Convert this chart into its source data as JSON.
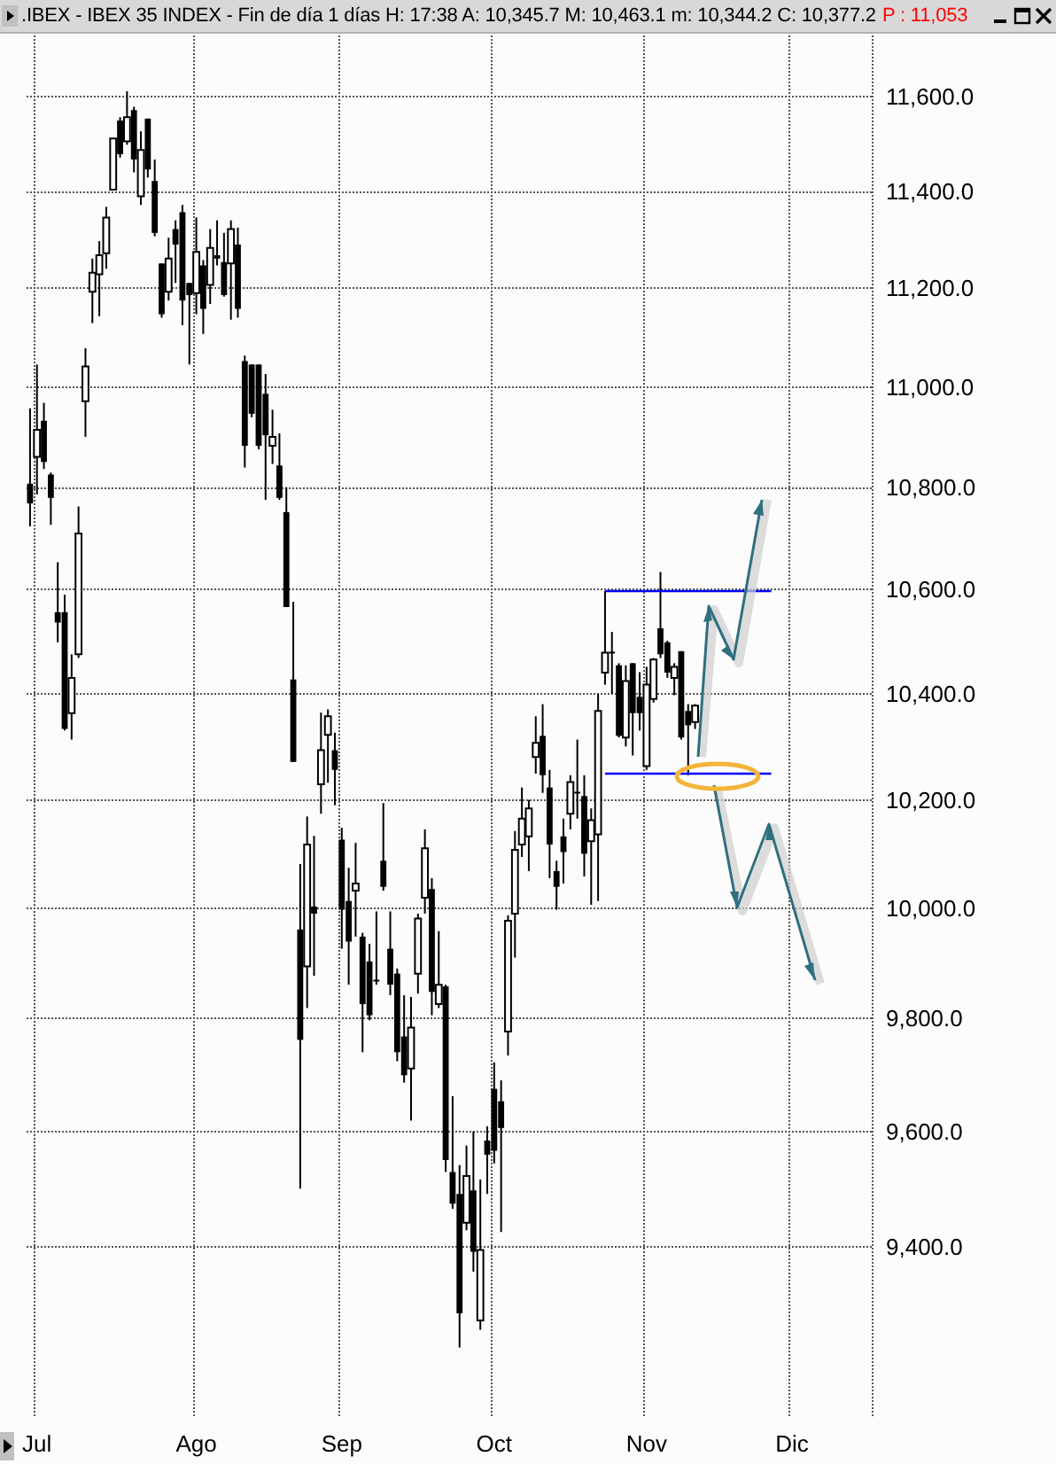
{
  "chart_data": {
    "type": "candlestick",
    "title": ".IBEX - IBEX 35 INDEX - Fin de día 1 días  H: 17:38  A: 10,345.7  M: 10,463.1  m: 10,344.2  C: 10,377.2",
    "annotations": [
      "P : 11,053"
    ],
    "color": "#000000",
    "log": true,
    "grid": true,
    "ylim": [
      9110,
      11730
    ],
    "yticks": [
      {
        "value": 9400,
        "label": "9,400.0"
      },
      {
        "value": 9600,
        "label": "9,600.0"
      },
      {
        "value": 9800,
        "label": "9,800.0"
      },
      {
        "value": 10000,
        "label": "10,000.0"
      },
      {
        "value": 10200,
        "label": "10,200.0"
      },
      {
        "value": 10400,
        "label": "10,400.0"
      },
      {
        "value": 10600,
        "label": "10,600.0"
      },
      {
        "value": 10800,
        "label": "10,800.0"
      },
      {
        "value": 11000,
        "label": "11,000.0"
      },
      {
        "value": 11200,
        "label": "11,200.0"
      },
      {
        "value": 11400,
        "label": "11,400.0"
      },
      {
        "value": 11600,
        "label": "11,600.0"
      }
    ],
    "ref_lines": [
      {
        "axis": "y",
        "value": 10597,
        "color": "#0000ff"
      },
      {
        "axis": "y",
        "value": 10250,
        "color": "#0000ff"
      }
    ],
    "categories": [
      null,
      "Jul",
      null,
      null,
      null,
      null,
      null,
      null,
      null,
      null,
      null,
      null,
      null,
      null,
      null,
      null,
      null,
      null,
      null,
      null,
      null,
      null,
      null,
      null,
      "Ago",
      null,
      null,
      null,
      null,
      null,
      null,
      null,
      null,
      null,
      null,
      null,
      null,
      null,
      null,
      null,
      null,
      null,
      null,
      null,
      null,
      "Sep",
      null,
      null,
      null,
      null,
      null,
      null,
      null,
      null,
      null,
      null,
      null,
      null,
      null,
      null,
      null,
      null,
      null,
      null,
      null,
      null,
      null,
      "Oct",
      null,
      null,
      null,
      null,
      null,
      null,
      null,
      null,
      null,
      null,
      null,
      null,
      null,
      null,
      null,
      null,
      null,
      null,
      null,
      null,
      null,
      "Nov",
      null,
      null,
      null,
      null,
      null,
      null,
      null,
      null,
      null,
      null,
      null,
      null,
      null,
      null,
      null,
      null,
      null,
      null,
      null,
      null,
      "Dic",
      null,
      null,
      null,
      null,
      null,
      null,
      null,
      null,
      null,
      null,
      null
    ],
    "ohlc": [
      [
        10807,
        10957,
        10723,
        10768
      ],
      [
        10860,
        11045,
        10786,
        10914
      ],
      [
        10932,
        10968,
        10836,
        10850
      ],
      [
        10825,
        10829,
        10726,
        10779
      ],
      [
        10556,
        10653,
        10498,
        10536
      ],
      [
        10556,
        10590,
        10330,
        10333
      ],
      [
        10363,
        10475,
        10313,
        10430
      ],
      [
        10475,
        10762,
        10468,
        10709
      ],
      [
        10971,
        11078,
        10900,
        11041
      ],
      [
        11193,
        11261,
        11129,
        11232
      ],
      [
        11229,
        11297,
        11143,
        11268
      ],
      [
        11272,
        11368,
        11240,
        11346
      ],
      [
        11404,
        11511,
        11404,
        11511
      ],
      [
        11549,
        11556,
        11471,
        11478
      ],
      [
        11505,
        11611,
        11498,
        11556
      ],
      [
        11571,
        11578,
        11440,
        11467
      ],
      [
        11390,
        11526,
        11372,
        11487
      ],
      [
        11553,
        11553,
        11429,
        11446
      ],
      [
        11422,
        11467,
        11307,
        11314
      ],
      [
        11251,
        11251,
        11140,
        11147
      ],
      [
        11193,
        11304,
        11175,
        11261
      ],
      [
        11322,
        11340,
        11211,
        11290
      ],
      [
        11357,
        11372,
        11125,
        11175
      ],
      [
        11211,
        11211,
        11045,
        11186
      ],
      [
        11190,
        11346,
        11147,
        11275
      ],
      [
        11247,
        11258,
        11107,
        11158
      ],
      [
        11207,
        11322,
        11168,
        11283
      ],
      [
        11268,
        11340,
        11247,
        11261
      ],
      [
        11254,
        11314,
        11183,
        11186
      ],
      [
        11251,
        11340,
        11136,
        11322
      ],
      [
        11290,
        11325,
        11140,
        11158
      ],
      [
        11052,
        11063,
        10839,
        10882
      ],
      [
        11045,
        11045,
        10939,
        10946
      ],
      [
        11045,
        11045,
        10875,
        10882
      ],
      [
        10986,
        11026,
        10775,
        10903
      ],
      [
        10882,
        10954,
        10846,
        10900
      ],
      [
        10843,
        10907,
        10775,
        10779
      ],
      [
        10751,
        10800,
        10566,
        10566
      ],
      [
        10427,
        10576,
        10271,
        10271
      ],
      [
        9961,
        10081,
        9500,
        9762
      ],
      [
        9894,
        10169,
        9819,
        10117
      ],
      [
        10003,
        10133,
        9877,
        9990
      ],
      [
        10229,
        10364,
        10174,
        10293
      ],
      [
        10322,
        10370,
        10232,
        10357
      ],
      [
        10293,
        10326,
        10190,
        10256
      ],
      [
        10126,
        10148,
        9926,
        9997
      ],
      [
        10013,
        10074,
        9861,
        9939
      ],
      [
        10032,
        10120,
        9948,
        10045
      ],
      [
        9948,
        9955,
        9740,
        9826
      ],
      [
        9903,
        9935,
        9797,
        9806
      ],
      [
        9870,
        9994,
        9861,
        9868
      ],
      [
        10087,
        10194,
        10032,
        10039
      ],
      [
        9926,
        9994,
        9842,
        9861
      ],
      [
        9881,
        9890,
        9724,
        9740
      ],
      [
        9768,
        9842,
        9686,
        9699
      ],
      [
        9711,
        9839,
        9619,
        9784
      ],
      [
        9881,
        9990,
        9845,
        9981
      ],
      [
        10019,
        10145,
        9990,
        10110
      ],
      [
        10035,
        10055,
        9806,
        9848
      ],
      [
        9826,
        9958,
        9819,
        9861
      ],
      [
        9858,
        9861,
        9529,
        9550
      ],
      [
        9529,
        9662,
        9465,
        9474
      ],
      [
        9491,
        9541,
        9228,
        9286
      ],
      [
        9441,
        9575,
        9428,
        9522
      ],
      [
        9497,
        9600,
        9357,
        9391
      ],
      [
        9274,
        9516,
        9258,
        9394
      ],
      [
        9584,
        9609,
        9491,
        9559
      ],
      [
        9675,
        9722,
        9544,
        9566
      ],
      [
        9653,
        9690,
        9425,
        9606
      ],
      [
        9777,
        9987,
        9734,
        9977
      ],
      [
        9990,
        10142,
        9910,
        10107
      ],
      [
        10117,
        10223,
        10094,
        10165
      ],
      [
        10132,
        10200,
        10068,
        10184
      ],
      [
        10280,
        10357,
        10249,
        10307
      ],
      [
        10320,
        10380,
        10213,
        10246
      ],
      [
        10223,
        10256,
        10055,
        10117
      ],
      [
        10068,
        10087,
        9997,
        10039
      ],
      [
        10132,
        10165,
        10045,
        10103
      ],
      [
        10174,
        10246,
        10145,
        10233
      ],
      [
        10215,
        10313,
        10165,
        10213
      ],
      [
        10207,
        10246,
        10058,
        10100
      ],
      [
        10123,
        10184,
        10006,
        10162
      ],
      [
        10136,
        10400,
        10013,
        10367
      ],
      [
        10440,
        10597,
        10417,
        10478
      ],
      [
        10480,
        10518,
        10400,
        10478
      ],
      [
        10454,
        10458,
        10317,
        10320
      ],
      [
        10317,
        10454,
        10300,
        10424
      ],
      [
        10458,
        10458,
        10283,
        10363
      ],
      [
        10394,
        10441,
        10330,
        10363
      ],
      [
        10263,
        10451,
        10256,
        10417
      ],
      [
        10390,
        10468,
        10383,
        10465
      ],
      [
        10525,
        10634,
        10468,
        10475
      ],
      [
        10498,
        10501,
        10430,
        10440
      ],
      [
        10430,
        10458,
        10397,
        10451
      ],
      [
        10481,
        10481,
        10313,
        10317
      ],
      [
        10367,
        10380,
        10246,
        10340
      ],
      [
        10346,
        10380,
        10333,
        10377
      ],
      null,
      null,
      null,
      null,
      null,
      null,
      null,
      null,
      null,
      null,
      null,
      null,
      null,
      null,
      null,
      null,
      null,
      null,
      null,
      null,
      null,
      null,
      null,
      null,
      null
    ]
  }
}
